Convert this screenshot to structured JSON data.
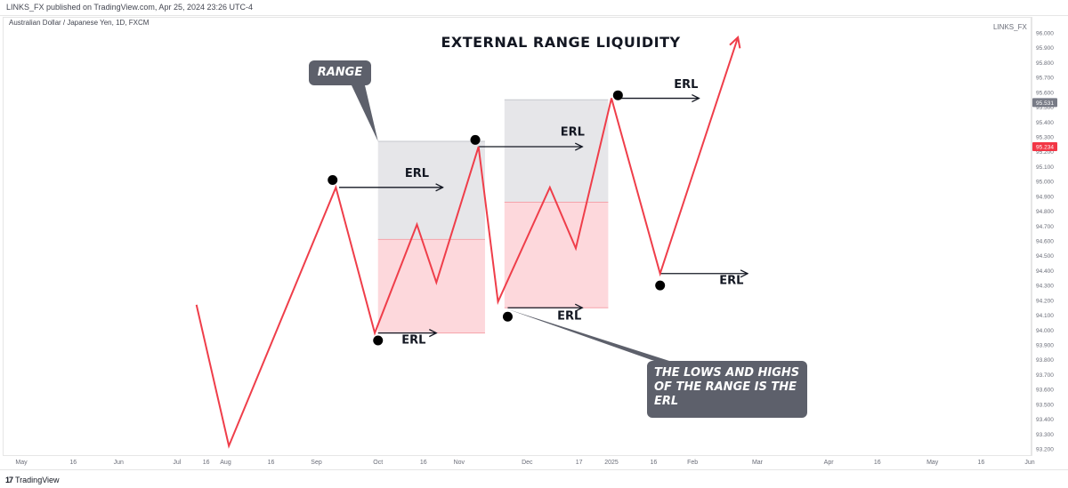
{
  "header": {
    "published": "LINKS_FX published on TradingView.com, Apr 25, 2024 23:26 UTC-4",
    "symbol": "Australian Dollar / Japanese Yen, 1D, FXCM",
    "author": "LINKS_FX"
  },
  "footer": {
    "brand": "TradingView",
    "logo_glyph": "17"
  },
  "callouts": {
    "range": "RANGE",
    "note": "THE LOWS AND HIGHS OF THE RANGE IS THE ERL"
  },
  "chart_data": {
    "type": "line",
    "title": "EXTERNAL RANGE LIQUIDITY",
    "ylim": [
      93.2,
      96.0
    ],
    "price_ticks": [
      "96.000",
      "95.900",
      "95.800",
      "95.700",
      "95.600",
      "95.500",
      "95.400",
      "95.300",
      "95.200",
      "95.100",
      "95.000",
      "94.900",
      "94.800",
      "94.700",
      "94.600",
      "94.500",
      "94.400",
      "94.300",
      "94.200",
      "94.100",
      "94.000",
      "93.900",
      "93.800",
      "93.700",
      "93.600",
      "93.500",
      "93.400",
      "93.300",
      "93.200"
    ],
    "price_tick_values": [
      96.0,
      95.9,
      95.8,
      95.7,
      95.6,
      95.5,
      95.4,
      95.3,
      95.2,
      95.1,
      95.0,
      94.9,
      94.8,
      94.7,
      94.6,
      94.5,
      94.4,
      94.3,
      94.2,
      94.1,
      94.0,
      93.9,
      93.8,
      93.7,
      93.6,
      93.5,
      93.4,
      93.3,
      93.2
    ],
    "price_badges": [
      {
        "label": "95.531",
        "value": 95.531,
        "color": "#787b86"
      },
      {
        "label": "95.234",
        "value": 95.234,
        "color": "#f23645"
      }
    ],
    "time_labels": [
      "May",
      "16",
      "Jun",
      "Jul",
      "16",
      "Aug",
      "16",
      "Sep",
      "Oct",
      "16",
      "Nov",
      "Dec",
      "17",
      "2025",
      "16",
      "Feb",
      "Mar",
      "Apr",
      "16",
      "May",
      "16",
      "Jun"
    ],
    "time_label_index": [
      0,
      1.6,
      3,
      4.8,
      5.7,
      6.3,
      7.7,
      9.1,
      11,
      12.4,
      13.5,
      15.6,
      17.2,
      18.2,
      19.5,
      20.7,
      22.7,
      24.9,
      26.4,
      28.1,
      29.6,
      31.1
    ],
    "x_range": [
      0,
      31.1
    ],
    "path": [
      {
        "x": 5.4,
        "y": 94.17
      },
      {
        "x": 6.4,
        "y": 93.22
      },
      {
        "x": 9.7,
        "y": 94.96
      },
      {
        "x": 10.9,
        "y": 93.98
      },
      {
        "x": 12.2,
        "y": 94.71
      },
      {
        "x": 12.8,
        "y": 94.32
      },
      {
        "x": 14.1,
        "y": 95.234
      },
      {
        "x": 14.7,
        "y": 94.19
      },
      {
        "x": 16.3,
        "y": 94.96
      },
      {
        "x": 17.1,
        "y": 94.55
      },
      {
        "x": 18.2,
        "y": 95.56
      },
      {
        "x": 19.7,
        "y": 94.38
      },
      {
        "x": 22.1,
        "y": 95.97
      }
    ],
    "ranges": [
      {
        "x0": 11.0,
        "x1": 14.3,
        "top": 95.27,
        "mid": 94.61,
        "bottom": 93.98
      },
      {
        "x0": 14.9,
        "x1": 18.1,
        "top": 95.55,
        "mid": 94.86,
        "bottom": 94.15
      }
    ],
    "swing_dots": [
      {
        "x": 9.6,
        "y": 95.01
      },
      {
        "x": 11.0,
        "y": 93.93
      },
      {
        "x": 14.0,
        "y": 95.28
      },
      {
        "x": 15.0,
        "y": 94.09
      },
      {
        "x": 18.4,
        "y": 95.58
      },
      {
        "x": 19.7,
        "y": 94.3
      }
    ],
    "erl_arrows": [
      {
        "x0": 9.8,
        "x1": 13.0,
        "y": 94.96,
        "label": "ERL",
        "label_x": 12.2,
        "label_y": 95.03
      },
      {
        "x0": 11.0,
        "x1": 12.8,
        "y": 93.98,
        "label": "ERL",
        "label_x": 12.1,
        "label_y": 93.91
      },
      {
        "x0": 14.1,
        "x1": 17.3,
        "y": 95.234,
        "label": "ERL",
        "label_x": 17.0,
        "label_y": 95.31
      },
      {
        "x0": 15.0,
        "x1": 17.3,
        "y": 94.15,
        "label": "ERL",
        "label_x": 16.9,
        "label_y": 94.07
      },
      {
        "x0": 18.3,
        "x1": 20.9,
        "y": 95.56,
        "label": "ERL",
        "label_x": 20.5,
        "label_y": 95.63
      },
      {
        "x0": 19.7,
        "x1": 22.4,
        "y": 94.38,
        "label": "ERL",
        "label_x": 21.9,
        "label_y": 94.31
      }
    ],
    "colors": {
      "line": "#ef3e4a",
      "range_top": "#e6e6e9",
      "range_bottom": "#fdd8dc",
      "range_edge": "#c5c7cd",
      "arrow": "#131722",
      "dot": "#000000",
      "callout": "#5d606b"
    }
  }
}
